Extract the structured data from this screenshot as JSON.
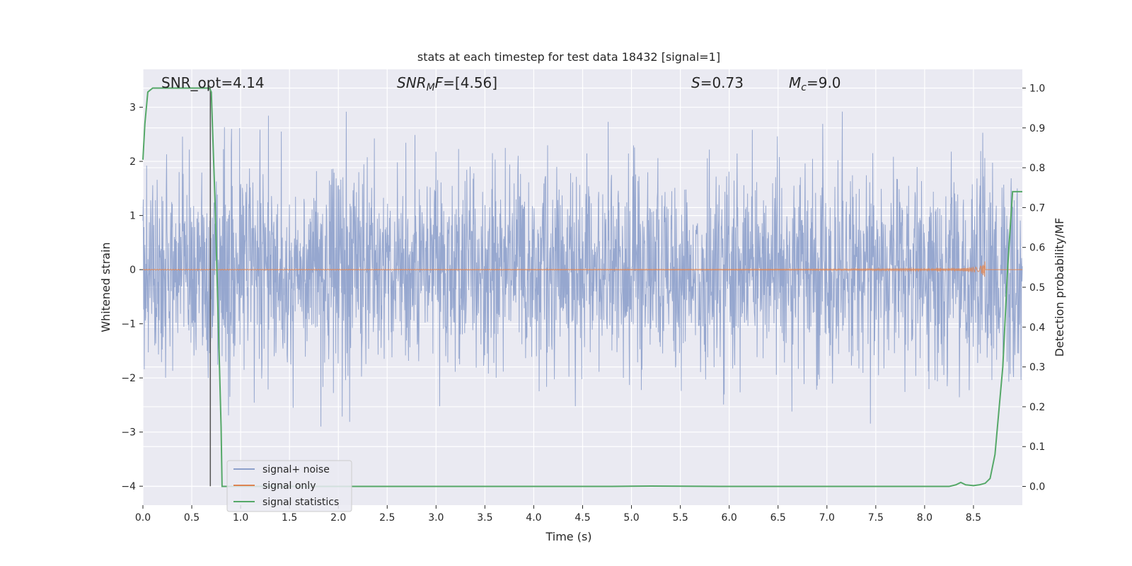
{
  "chart_data": {
    "type": "line",
    "title": "stats at each timestep for test data 18432 [signal=1]",
    "xlabel": "Time (s)",
    "ylabel": "Whitened strain",
    "ylabel_right": "Detection probability/MF",
    "xlim": [
      0.0,
      9.0
    ],
    "ylim": [
      -4.35,
      3.7
    ],
    "ylim_right": [
      -0.047,
      1.047
    ],
    "x_ticks": [
      0.0,
      0.5,
      1.0,
      1.5,
      2.0,
      2.5,
      3.0,
      3.5,
      4.0,
      4.5,
      5.0,
      5.5,
      6.0,
      6.5,
      7.0,
      7.5,
      8.0,
      8.5
    ],
    "x_tick_labels": [
      "0.0",
      "0.5",
      "1.0",
      "1.5",
      "2.0",
      "2.5",
      "3.0",
      "3.5",
      "4.0",
      "4.5",
      "5.0",
      "5.5",
      "6.0",
      "6.5",
      "7.0",
      "7.5",
      "8.0",
      "8.5"
    ],
    "y_ticks": [
      3,
      2,
      1,
      0,
      -1,
      -2,
      -3,
      -4
    ],
    "y_tick_labels": [
      "3",
      "2",
      "1",
      "0",
      "−1",
      "−2",
      "−3",
      "−4"
    ],
    "y_right_ticks": [
      1.0,
      0.9,
      0.8,
      0.7,
      0.6,
      0.5,
      0.4,
      0.3,
      0.2,
      0.1,
      0.0
    ],
    "y_right_tick_labels": [
      "1.0",
      "0.9",
      "0.8",
      "0.7",
      "0.6",
      "0.5",
      "0.4",
      "0.3",
      "0.2",
      "0.1",
      "0.0"
    ],
    "grid": true,
    "legend_position": "lower-left",
    "colors": {
      "noise": "#8da0cb",
      "signal": "#dd8452",
      "stat": "#55a868",
      "vline": "#555555",
      "background": "#eaeaf2",
      "grid": "#ffffff"
    },
    "series": [
      {
        "name": "signal+ noise",
        "description_values": "random noise, approx amplitude 2"
      },
      {
        "name": "signal only",
        "chirp_end": 8.62,
        "max_amplitude": 0.5
      },
      {
        "name": "signal statistics",
        "axis": "right",
        "x": [
          0.0,
          0.02,
          0.05,
          0.1,
          0.68,
          0.7,
          0.74,
          0.8,
          0.81,
          1.0,
          2.0,
          3.0,
          4.0,
          4.8,
          5.2,
          6.0,
          7.0,
          8.0,
          8.25,
          8.32,
          8.37,
          8.42,
          8.5,
          8.56,
          8.62,
          8.67,
          8.72,
          8.8,
          8.85,
          8.9,
          8.95,
          9.0
        ],
        "values": [
          0.82,
          0.91,
          0.99,
          1.0,
          1.0,
          0.99,
          0.7,
          0.15,
          0.0,
          0.0,
          0.0,
          0.0,
          0.0,
          0.0,
          0.001,
          0.0,
          0.0,
          0.0,
          0.0,
          0.004,
          0.01,
          0.004,
          0.002,
          0.004,
          0.008,
          0.02,
          0.08,
          0.3,
          0.55,
          0.74,
          0.74,
          0.74
        ]
      }
    ],
    "vline_x": 0.69,
    "annotations": [
      {
        "text": "SNR_opt=4.14"
      },
      {
        "sym": "SNR",
        "sub": "M",
        "sym2": "F",
        "rest": "=[4.56]"
      },
      {
        "sym": "S",
        "rest": "=0.73"
      },
      {
        "sym": "M",
        "sub": "c",
        "rest": "=9.0"
      }
    ]
  }
}
